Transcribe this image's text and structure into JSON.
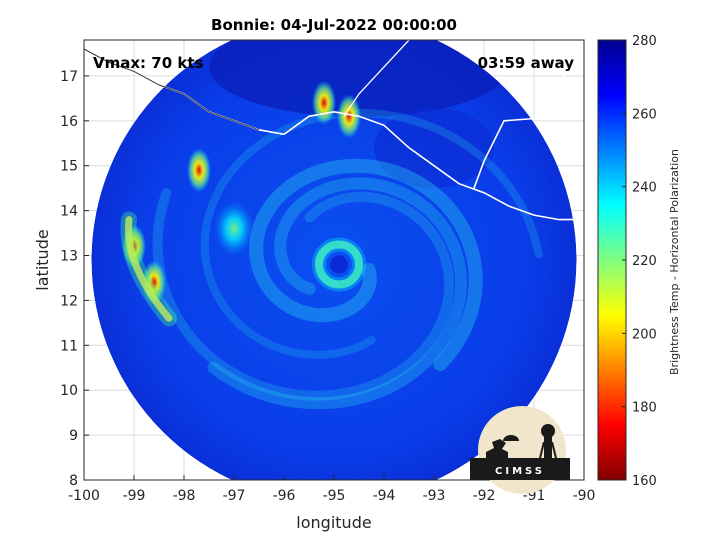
{
  "chart_data": {
    "type": "heatmap",
    "title": "Bonnie: 04-Jul-2022 00:00:00",
    "annotations": {
      "vmax": "Vmax: 70 kts",
      "time_away": "03:59 away"
    },
    "xlabel": "longitude",
    "ylabel": "latitude",
    "xlim": [
      -100,
      -90
    ],
    "ylim": [
      8,
      17.8
    ],
    "xticks": [
      -100,
      -99,
      -98,
      -97,
      -96,
      -95,
      -94,
      -93,
      -92,
      -91,
      -90
    ],
    "yticks": [
      8,
      9,
      10,
      11,
      12,
      13,
      14,
      15,
      16,
      17
    ],
    "grid": true,
    "storm_center": {
      "lon": -94.9,
      "lat": 12.8
    },
    "swath": {
      "center_lon": -95.0,
      "center_lat": 12.9,
      "radius_deg": 4.85
    },
    "colorbar": {
      "label": "Brightness Temp - Horizontal Polarization",
      "range": [
        160,
        280
      ],
      "ticks": [
        160,
        180,
        200,
        220,
        240,
        260,
        280
      ],
      "colors": [
        "#800000",
        "#ff0000",
        "#ff8000",
        "#ffff00",
        "#80ff80",
        "#00ffff",
        "#0080ff",
        "#0000ff",
        "#00008f"
      ]
    },
    "features": [
      {
        "name": "rainband-west",
        "lon": -99.0,
        "lat": 13.2,
        "tb": 200
      },
      {
        "name": "rainband-west-2",
        "lon": -98.6,
        "lat": 12.4,
        "tb": 205
      },
      {
        "name": "convection-north",
        "lon": -97.7,
        "lat": 14.9,
        "tb": 190
      },
      {
        "name": "coastal-cell",
        "lon": -95.2,
        "lat": 16.4,
        "tb": 195
      },
      {
        "name": "coastal-cell-2",
        "lon": -94.7,
        "lat": 16.1,
        "tb": 200
      },
      {
        "name": "band-mid",
        "lon": -97.0,
        "lat": 13.6,
        "tb": 225
      },
      {
        "name": "eyewall",
        "lon": -94.9,
        "lat": 12.8,
        "tb": 230
      }
    ],
    "logo_text": "CIMSS"
  }
}
